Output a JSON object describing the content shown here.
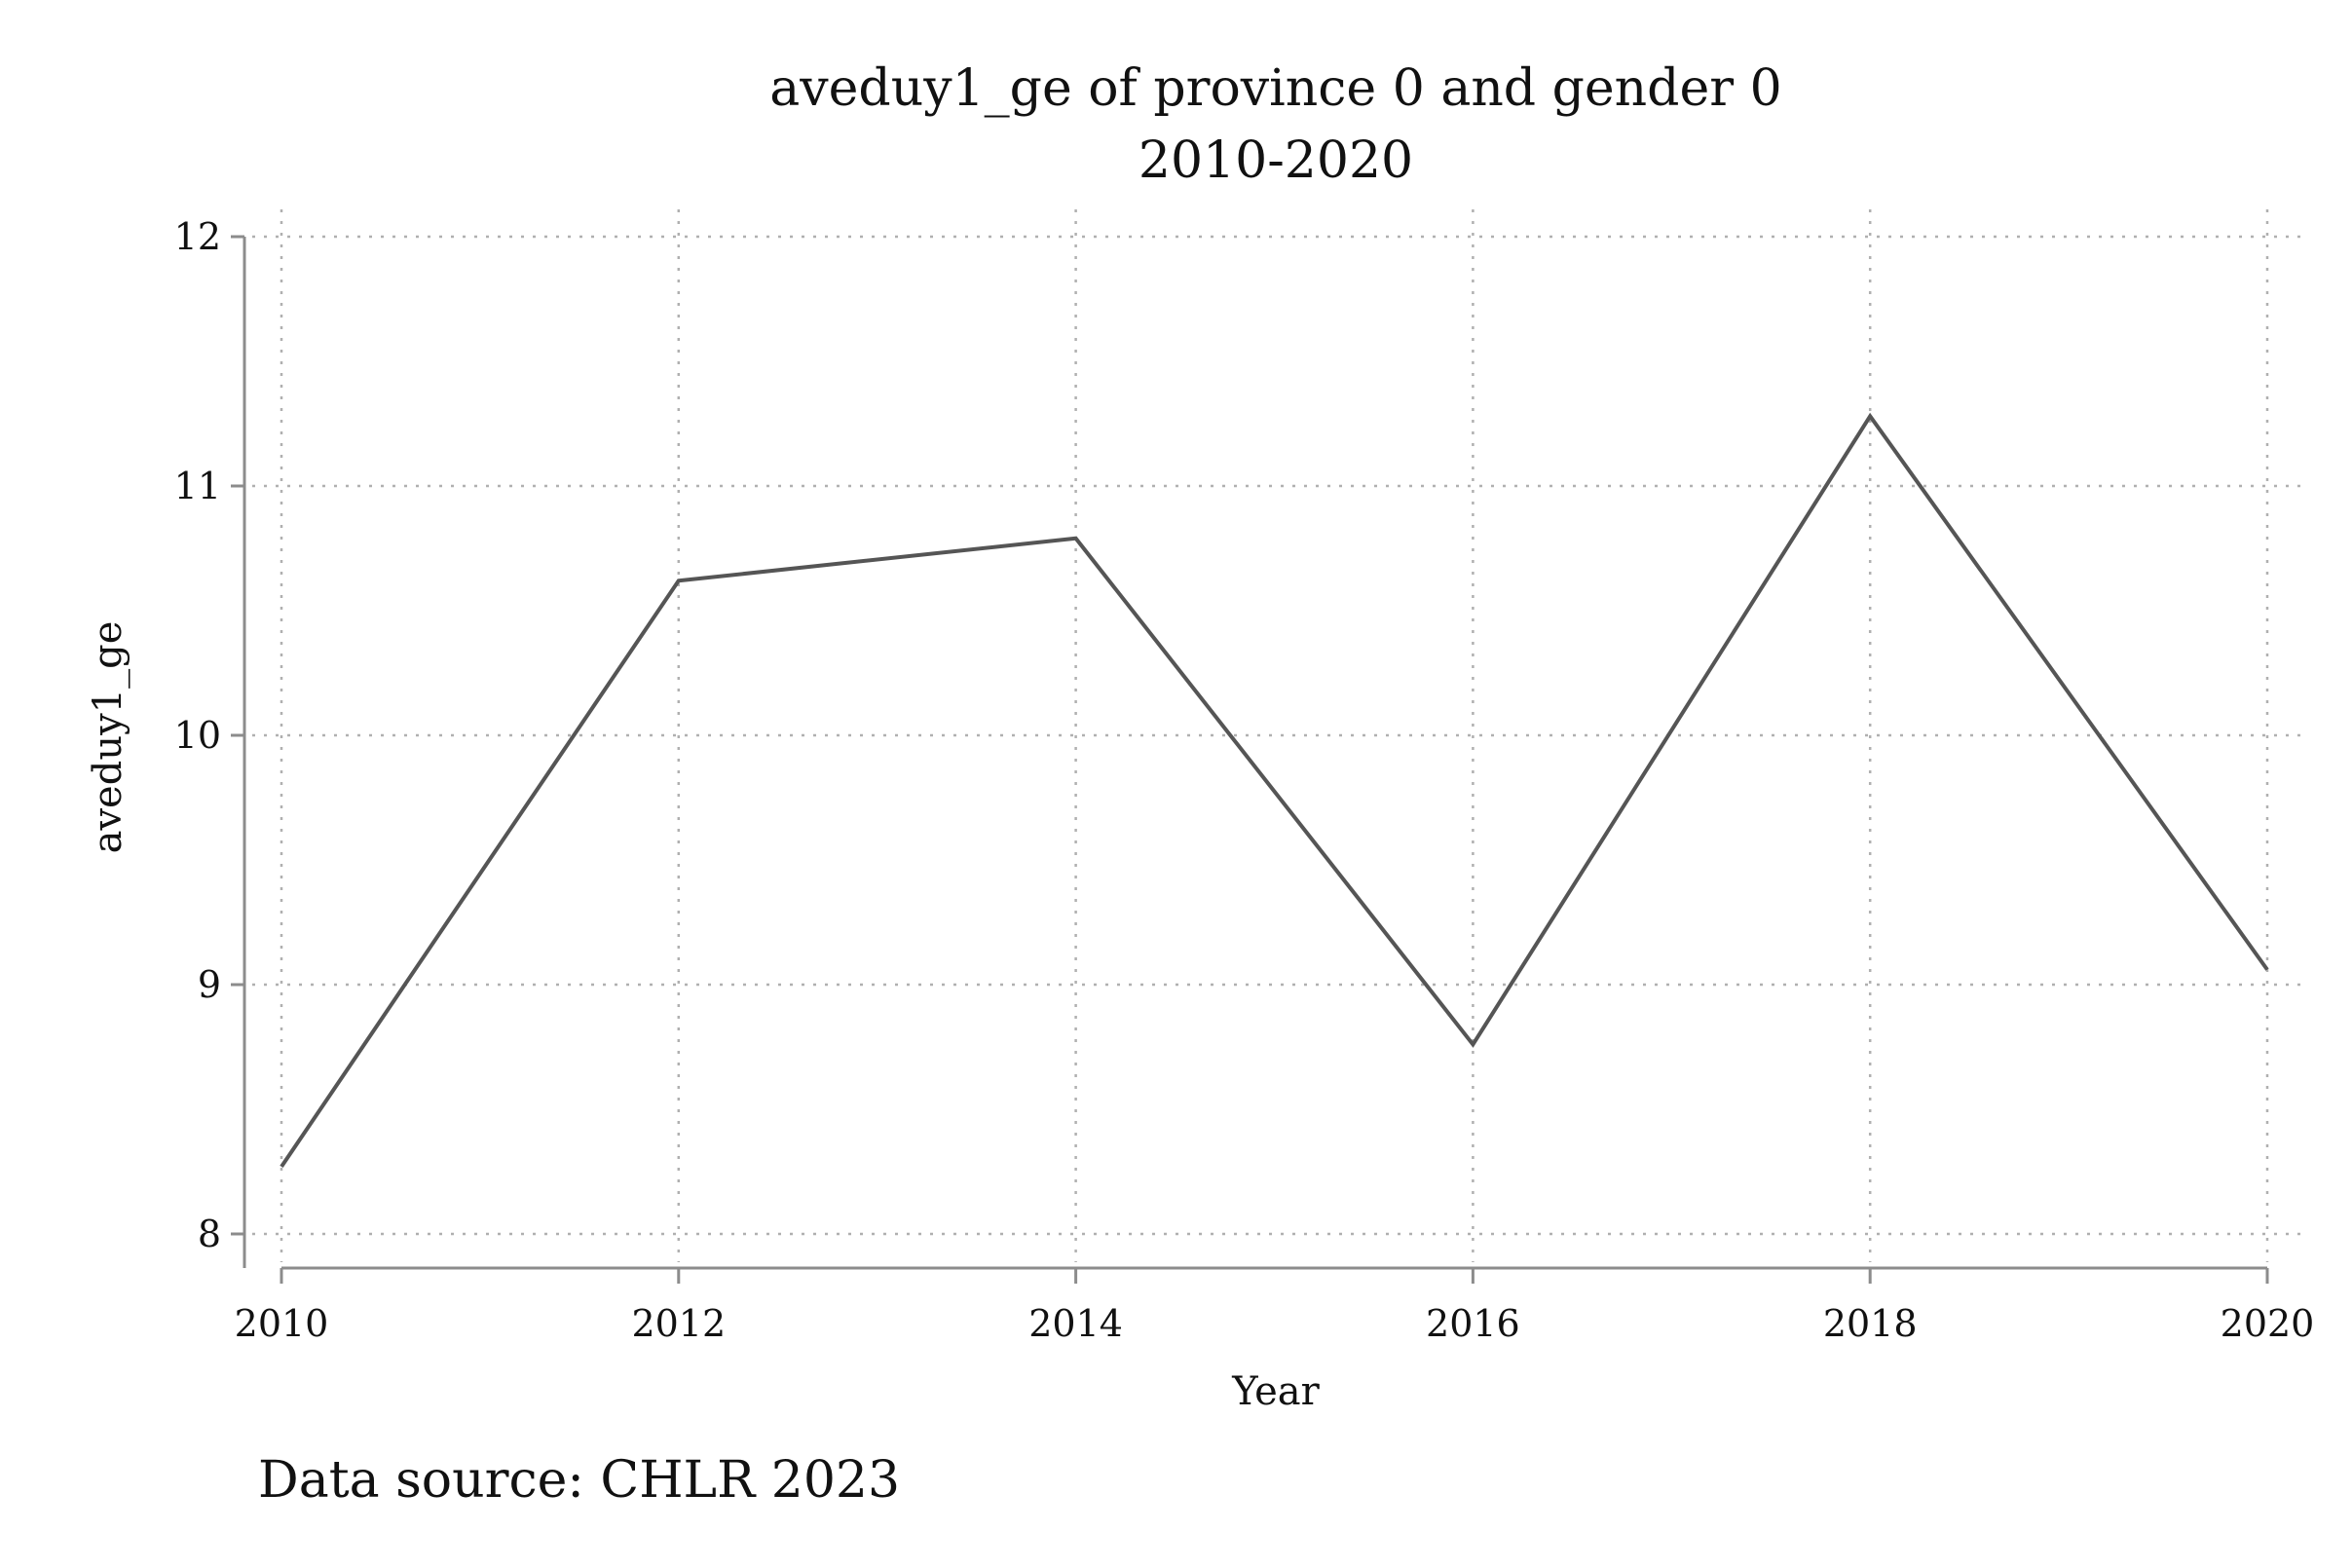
{
  "chart_data": {
    "type": "line",
    "title": "aveduy1_ge of province 0 and gender 0",
    "subtitle": "2010-2020",
    "xlabel": "Year",
    "ylabel": "aveduy1_ge",
    "x": [
      2010,
      2012,
      2014,
      2016,
      2018,
      2020
    ],
    "xticks": [
      "2010",
      "2012",
      "2014",
      "2016",
      "2018",
      "2020"
    ],
    "yticks": [
      "8",
      "9",
      "10",
      "11",
      "12"
    ],
    "xlim": [
      2010,
      2020
    ],
    "ylim": [
      8,
      12
    ],
    "grid": true,
    "series": [
      {
        "values": [
          8.27,
          10.62,
          10.79,
          8.76,
          11.28,
          9.06
        ],
        "color": "#555555"
      }
    ],
    "note": "Data source: CHLR 2023"
  }
}
